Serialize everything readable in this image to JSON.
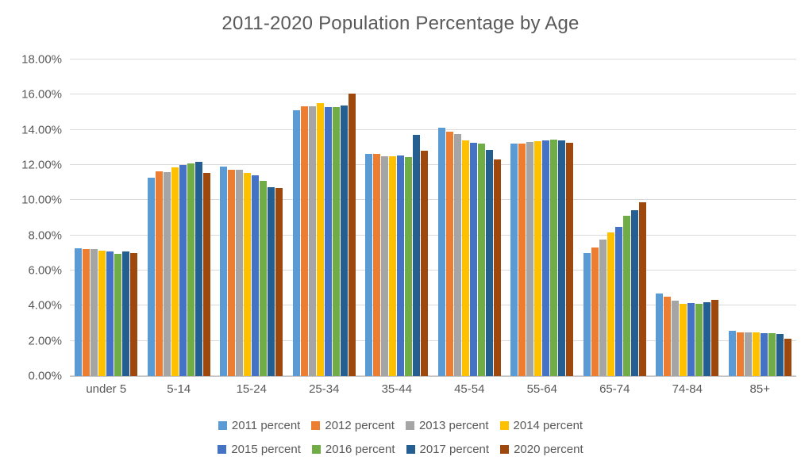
{
  "title": "2011-2020 Population Percentage by Age",
  "colors": {
    "title_text": "#595959",
    "axis_text": "#595959",
    "gridline": "#D9D9D9",
    "background": "#FFFFFF"
  },
  "y_axis": {
    "tick_labels": [
      "0.00%",
      "2.00%",
      "4.00%",
      "6.00%",
      "8.00%",
      "10.00%",
      "12.00%",
      "14.00%",
      "16.00%",
      "18.00%"
    ]
  },
  "chart_data": {
    "type": "bar",
    "title": "2011-2020 Population Percentage by Age",
    "categories": [
      "under 5",
      "5-14",
      "15-24",
      "25-34",
      "35-44",
      "45-54",
      "55-64",
      "65-74",
      "74-84",
      "85+"
    ],
    "series": [
      {
        "name": "2011 percent",
        "color": "#5B9BD5",
        "values": [
          7.25,
          11.3,
          11.9,
          15.1,
          12.65,
          14.1,
          13.2,
          7.0,
          4.7,
          2.55
        ]
      },
      {
        "name": "2012 percent",
        "color": "#ED7D31",
        "values": [
          7.2,
          11.65,
          11.75,
          15.35,
          12.65,
          13.9,
          13.2,
          7.3,
          4.5,
          2.5
        ]
      },
      {
        "name": "2013 percent",
        "color": "#A5A5A5",
        "values": [
          7.2,
          11.6,
          11.75,
          15.35,
          12.5,
          13.75,
          13.3,
          7.75,
          4.3,
          2.5
        ]
      },
      {
        "name": "2014 percent",
        "color": "#FFC000",
        "values": [
          7.15,
          11.85,
          11.55,
          15.5,
          12.5,
          13.4,
          13.35,
          8.15,
          4.1,
          2.5
        ]
      },
      {
        "name": "2015 percent",
        "color": "#4472C4",
        "values": [
          7.1,
          12.0,
          11.4,
          15.3,
          12.55,
          13.25,
          13.4,
          8.5,
          4.15,
          2.45
        ]
      },
      {
        "name": "2016 percent",
        "color": "#70AD47",
        "values": [
          6.95,
          12.1,
          11.1,
          15.3,
          12.45,
          13.2,
          13.45,
          9.1,
          4.1,
          2.45
        ]
      },
      {
        "name": "2017 percent",
        "color": "#255E91",
        "values": [
          7.1,
          12.2,
          10.75,
          15.4,
          13.7,
          12.85,
          13.4,
          9.45,
          4.2,
          2.4
        ]
      },
      {
        "name": "2020 percent",
        "color": "#9E480E",
        "values": [
          7.0,
          11.55,
          10.7,
          16.05,
          12.8,
          12.3,
          13.25,
          9.9,
          4.35,
          2.1
        ]
      }
    ],
    "xlabel": "",
    "ylabel": "",
    "ylim": [
      0,
      18
    ],
    "ytick_step": 2,
    "ytick_format": "0.00%",
    "grid": true,
    "legend_position": "bottom",
    "legend_rows": [
      [
        "2011 percent",
        "2012 percent",
        "2013 percent",
        "2014 percent"
      ],
      [
        "2015 percent",
        "2016 percent",
        "2017 percent",
        "2020 percent"
      ]
    ]
  }
}
